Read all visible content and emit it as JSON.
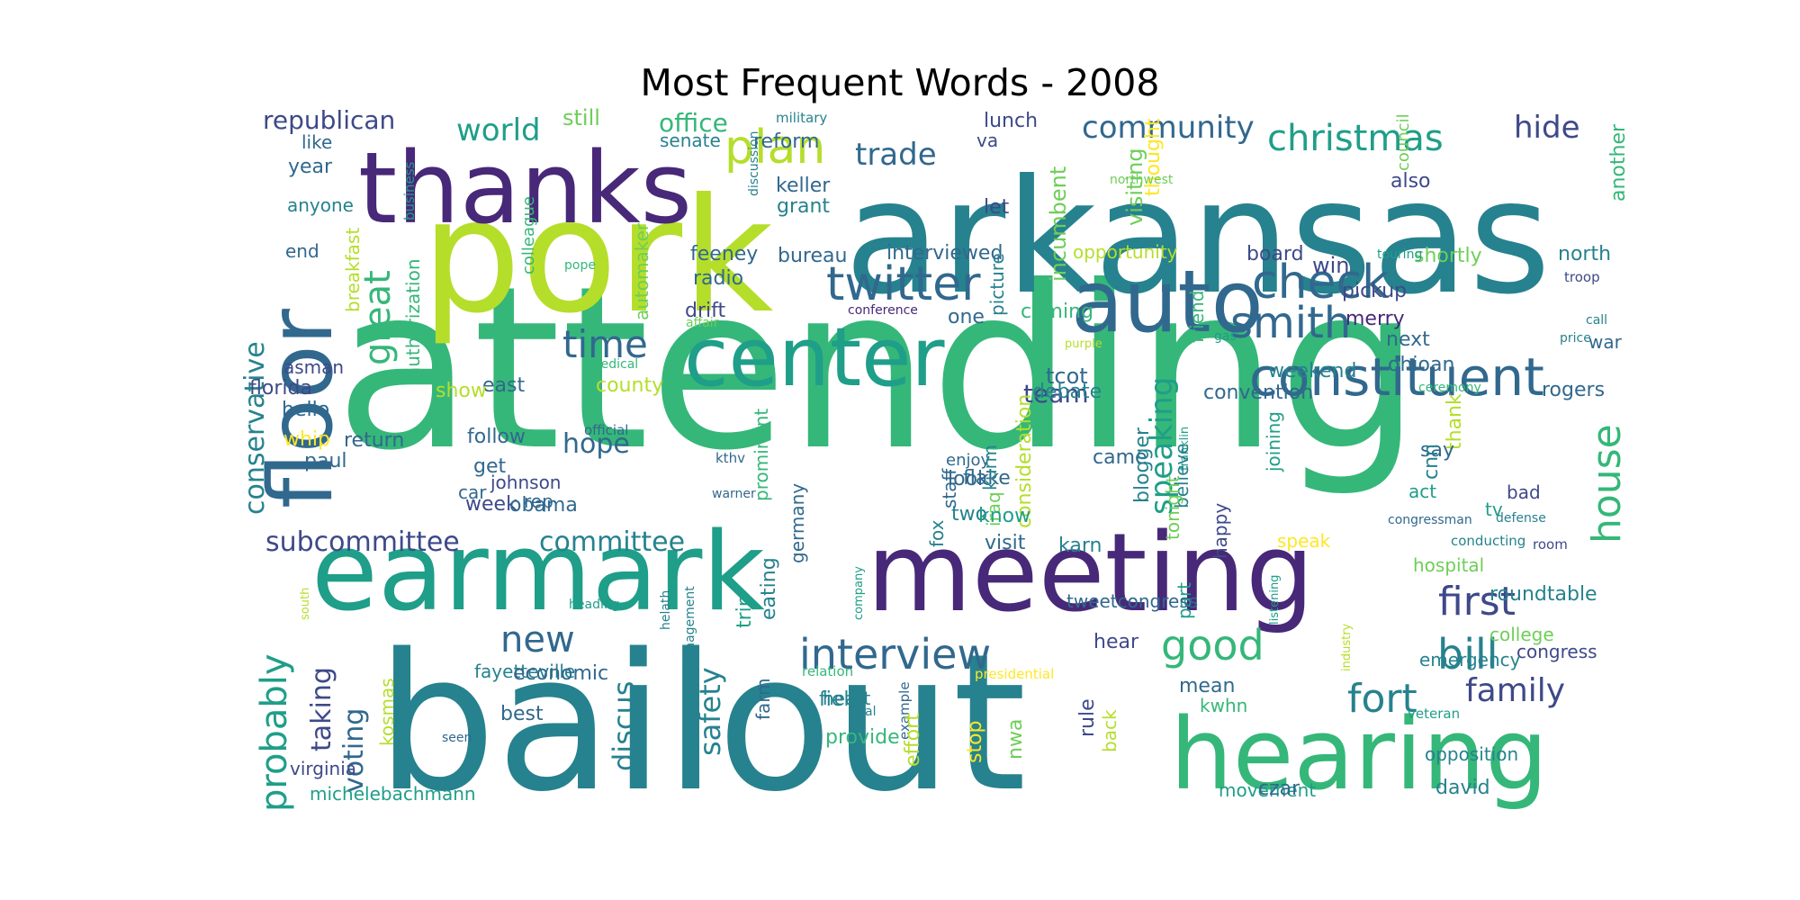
{
  "title": "Most Frequent Words - 2008",
  "palette": [
    "#440154",
    "#482878",
    "#3e4989",
    "#31688e",
    "#26828e",
    "#1f9e89",
    "#35b779",
    "#6ece58",
    "#b5de2b",
    "#fde725"
  ],
  "words": [
    {
      "text": "attending",
      "c": 6
    },
    {
      "text": "bailout",
      "c": 4
    },
    {
      "text": "arkansas",
      "c": 4
    },
    {
      "text": "pork",
      "c": 8
    },
    {
      "text": "earmark",
      "c": 5
    },
    {
      "text": "meeting",
      "c": 1
    },
    {
      "text": "thanks",
      "c": 1
    },
    {
      "text": "hearing",
      "c": 6
    },
    {
      "text": "auto",
      "c": 3
    },
    {
      "text": "center",
      "c": 5
    },
    {
      "text": "floor",
      "c": 3
    },
    {
      "text": "constituent",
      "c": 3
    },
    {
      "text": "twitter",
      "c": 3
    },
    {
      "text": "check",
      "c": 3
    },
    {
      "text": "smith",
      "c": 3
    },
    {
      "text": "interview",
      "c": 3
    },
    {
      "text": "plan",
      "c": 8
    },
    {
      "text": "christmas",
      "c": 5
    },
    {
      "text": "community",
      "c": 3
    },
    {
      "text": "world",
      "c": 5
    },
    {
      "text": "trade",
      "c": 3
    },
    {
      "text": "hide",
      "c": 2
    },
    {
      "text": "time",
      "c": 3
    },
    {
      "text": "great",
      "c": 6
    },
    {
      "text": "house",
      "c": 6
    },
    {
      "text": "first",
      "c": 2
    },
    {
      "text": "fort",
      "c": 4
    },
    {
      "text": "family",
      "c": 2
    },
    {
      "text": "bill",
      "c": 4
    },
    {
      "text": "good",
      "c": 6
    },
    {
      "text": "new",
      "c": 3
    },
    {
      "text": "probably",
      "c": 5
    },
    {
      "text": "taking",
      "c": 2
    },
    {
      "text": "voting",
      "c": 3
    },
    {
      "text": "discus",
      "c": 4
    },
    {
      "text": "safety",
      "c": 4
    },
    {
      "text": "subcommittee",
      "c": 2
    },
    {
      "text": "committee",
      "c": 4
    },
    {
      "text": "speaking",
      "c": 5
    },
    {
      "text": "team",
      "c": 2
    },
    {
      "text": "conservative",
      "c": 4
    },
    {
      "text": "hope",
      "c": 3
    },
    {
      "text": "republican",
      "c": 2
    },
    {
      "text": "office",
      "c": 6
    },
    {
      "text": "still",
      "c": 7
    },
    {
      "text": "military",
      "c": 4
    },
    {
      "text": "lunch",
      "c": 2
    },
    {
      "text": "incumbent",
      "c": 7
    },
    {
      "text": "picture",
      "c": 4
    },
    {
      "text": "va",
      "c": 2
    },
    {
      "text": "like",
      "c": 3
    },
    {
      "text": "senate",
      "c": 4
    },
    {
      "text": "reform",
      "c": 3
    },
    {
      "text": "year",
      "c": 3
    },
    {
      "text": "keller",
      "c": 3
    },
    {
      "text": "grant",
      "c": 4
    },
    {
      "text": "anyone",
      "c": 4
    },
    {
      "text": "business",
      "c": 5
    },
    {
      "text": "discussion",
      "c": 4
    },
    {
      "text": "let",
      "c": 2
    },
    {
      "text": "visiting",
      "c": 7
    },
    {
      "text": "thought",
      "c": 9
    },
    {
      "text": "council",
      "c": 7
    },
    {
      "text": "another",
      "c": 6
    },
    {
      "text": "also",
      "c": 2
    },
    {
      "text": "northwest",
      "c": 7
    },
    {
      "text": "end",
      "c": 3
    },
    {
      "text": "breakfast",
      "c": 8
    },
    {
      "text": "colleague",
      "c": 6
    },
    {
      "text": "pope",
      "c": 6
    },
    {
      "text": "automaker",
      "c": 7
    },
    {
      "text": "feeney",
      "c": 3
    },
    {
      "text": "bureau",
      "c": 3
    },
    {
      "text": "interviewed",
      "c": 3
    },
    {
      "text": "opportunity",
      "c": 8
    },
    {
      "text": "board",
      "c": 2
    },
    {
      "text": "shortly",
      "c": 7
    },
    {
      "text": "north",
      "c": 4
    },
    {
      "text": "touring",
      "c": 5
    },
    {
      "text": "win",
      "c": 2
    },
    {
      "text": "troop",
      "c": 2
    },
    {
      "text": "authorization",
      "c": 6
    },
    {
      "text": "radio",
      "c": 3
    },
    {
      "text": "drift",
      "c": 2
    },
    {
      "text": "conference",
      "c": 1
    },
    {
      "text": "affair",
      "c": 7
    },
    {
      "text": "pickup",
      "c": 2
    },
    {
      "text": "one",
      "c": 3
    },
    {
      "text": "coming",
      "c": 6
    },
    {
      "text": "friend",
      "c": 6
    },
    {
      "text": "merry",
      "c": 1
    },
    {
      "text": "call",
      "c": 4
    },
    {
      "text": "war",
      "c": 3
    },
    {
      "text": "purple",
      "c": 8
    },
    {
      "text": "gas",
      "c": 5
    },
    {
      "text": "price",
      "c": 4
    },
    {
      "text": "next",
      "c": 3
    },
    {
      "text": "ohioan",
      "c": 3
    },
    {
      "text": "tcot",
      "c": 3
    },
    {
      "text": "weekend",
      "c": 4
    },
    {
      "text": "asman",
      "c": 2
    },
    {
      "text": "medical",
      "c": 6
    },
    {
      "text": "east",
      "c": 3
    },
    {
      "text": "county",
      "c": 8
    },
    {
      "text": "florida",
      "c": 2
    },
    {
      "text": "show",
      "c": 8
    },
    {
      "text": "convention",
      "c": 3
    },
    {
      "text": "debate",
      "c": 4
    },
    {
      "text": "rogers",
      "c": 3
    },
    {
      "text": "ceremony",
      "c": 6
    },
    {
      "text": "hello",
      "c": 3
    },
    {
      "text": "whip",
      "c": 9
    },
    {
      "text": "return",
      "c": 3
    },
    {
      "text": "follow",
      "c": 3
    },
    {
      "text": "official",
      "c": 3
    },
    {
      "text": "prominent",
      "c": 6
    },
    {
      "text": "consideration",
      "c": 8
    },
    {
      "text": "enjoy",
      "c": 3
    },
    {
      "text": "franklin",
      "c": 5
    },
    {
      "text": "joining",
      "c": 5
    },
    {
      "text": "believe",
      "c": 4
    },
    {
      "text": "thank",
      "c": 8
    },
    {
      "text": "paul",
      "c": 3
    },
    {
      "text": "get",
      "c": 3
    },
    {
      "text": "kthv",
      "c": 3
    },
    {
      "text": "came",
      "c": 3
    },
    {
      "text": "say",
      "c": 3
    },
    {
      "text": "blogger",
      "c": 4
    },
    {
      "text": "cnn",
      "c": 4
    },
    {
      "text": "car",
      "c": 3
    },
    {
      "text": "johnson",
      "c": 2
    },
    {
      "text": "flake",
      "c": 3
    },
    {
      "text": "look",
      "c": 3
    },
    {
      "text": "week",
      "c": 2
    },
    {
      "text": "rep",
      "c": 3
    },
    {
      "text": "kurm",
      "c": 4
    },
    {
      "text": "warner",
      "c": 3
    },
    {
      "text": "act",
      "c": 5
    },
    {
      "text": "two",
      "c": 4
    },
    {
      "text": "staff",
      "c": 3
    },
    {
      "text": "iraq",
      "c": 7
    },
    {
      "text": "know",
      "c": 5
    },
    {
      "text": "obama",
      "c": 3
    },
    {
      "text": "bad",
      "c": 2
    },
    {
      "text": "congressman",
      "c": 3
    },
    {
      "text": "tv",
      "c": 5
    },
    {
      "text": "tonight",
      "c": 7
    },
    {
      "text": "defense",
      "c": 4
    },
    {
      "text": "speak",
      "c": 9
    },
    {
      "text": "germany",
      "c": 3
    },
    {
      "text": "fox",
      "c": 4
    },
    {
      "text": "visit",
      "c": 3
    },
    {
      "text": "karn",
      "c": 4
    },
    {
      "text": "part",
      "c": 5
    },
    {
      "text": "happy",
      "c": 2
    },
    {
      "text": "conducting",
      "c": 4
    },
    {
      "text": "room",
      "c": 2
    },
    {
      "text": "hospital",
      "c": 7
    },
    {
      "text": "roundtable",
      "c": 4
    },
    {
      "text": "south",
      "c": 8
    },
    {
      "text": "tweetcongress",
      "c": 3
    },
    {
      "text": "company",
      "c": 5
    },
    {
      "text": "listening",
      "c": 5
    },
    {
      "text": "heading",
      "c": 5
    },
    {
      "text": "trip",
      "c": 5
    },
    {
      "text": "eating",
      "c": 4
    },
    {
      "text": "hear",
      "c": 2
    },
    {
      "text": "helath",
      "c": 4
    },
    {
      "text": "college",
      "c": 7
    },
    {
      "text": "congress",
      "c": 2
    },
    {
      "text": "fayetteville",
      "c": 4
    },
    {
      "text": "industry",
      "c": 8
    },
    {
      "text": "emergency",
      "c": 4
    },
    {
      "text": "management",
      "c": 4
    },
    {
      "text": "economic",
      "c": 3
    },
    {
      "text": "farm",
      "c": 3
    },
    {
      "text": "relation",
      "c": 6
    },
    {
      "text": "presidential",
      "c": 9
    },
    {
      "text": "mean",
      "c": 3
    },
    {
      "text": "field",
      "c": 4
    },
    {
      "text": "kwhn",
      "c": 6
    },
    {
      "text": "kosmas",
      "c": 8
    },
    {
      "text": "heart",
      "c": 4
    },
    {
      "text": "veteran",
      "c": 5
    },
    {
      "text": "seen",
      "c": 3
    },
    {
      "text": "best",
      "c": 3
    },
    {
      "text": "real",
      "c": 4
    },
    {
      "text": "example",
      "c": 3
    },
    {
      "text": "provide",
      "c": 6
    },
    {
      "text": "effort",
      "c": 8
    },
    {
      "text": "stop",
      "c": 9
    },
    {
      "text": "nwa",
      "c": 7
    },
    {
      "text": "rule",
      "c": 2
    },
    {
      "text": "back",
      "c": 8
    },
    {
      "text": "opposition",
      "c": 4
    },
    {
      "text": "virginia",
      "c": 2
    },
    {
      "text": "michelebachmann",
      "c": 5
    },
    {
      "text": "movement",
      "c": 5
    },
    {
      "text": "czar",
      "c": 3
    },
    {
      "text": "david",
      "c": 4
    }
  ]
}
